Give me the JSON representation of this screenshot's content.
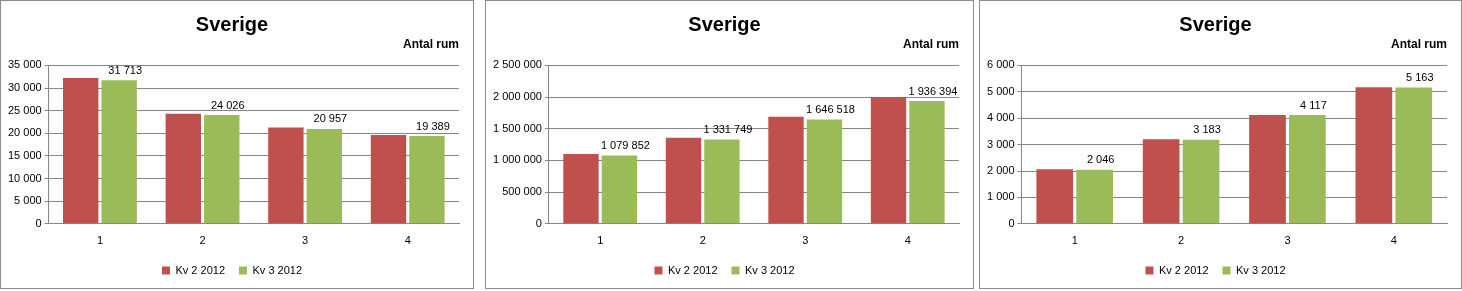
{
  "chart_data": [
    {
      "type": "bar",
      "title": "Sverige",
      "annotations": [
        "Antal rum"
      ],
      "categories": [
        "1",
        "2",
        "3",
        "4"
      ],
      "series": [
        {
          "name": "Kv 2 2012",
          "color": "#C0504D",
          "values": [
            32200,
            24300,
            21300,
            19600
          ]
        },
        {
          "name": "Kv 3 2012",
          "color": "#9BBB59",
          "values": [
            31713,
            24026,
            20957,
            19389
          ],
          "data_labels": true,
          "value_labels": [
            "31 713",
            "24 026",
            "20 957",
            "19 389"
          ]
        }
      ],
      "ylim": [
        0,
        35000
      ],
      "yticks": [
        0,
        {
          "value": 5000,
          "label": "5 000"
        },
        {
          "value": 10000,
          "label": "10 000"
        },
        {
          "value": 15000,
          "label": "15 000"
        },
        {
          "value": 20000,
          "label": "20 000"
        },
        {
          "value": 25000,
          "label": "25 000"
        },
        {
          "value": 30000,
          "label": "30 000"
        },
        {
          "value": 35000,
          "label": "35 000"
        }
      ],
      "grid": true,
      "legend": "bottom"
    },
    {
      "type": "bar",
      "title": "Sverige",
      "annotations": [
        "Antal rum"
      ],
      "categories": [
        "1",
        "2",
        "3",
        "4"
      ],
      "series": [
        {
          "name": "Kv 2 2012",
          "color": "#C0504D",
          "values": [
            1100000,
            1360000,
            1690000,
            2000000
          ]
        },
        {
          "name": "Kv 3 2012",
          "color": "#9BBB59",
          "values": [
            1079852,
            1331749,
            1646518,
            1936394
          ],
          "data_labels": true,
          "value_labels": [
            "1 079 852",
            "1 331 749",
            "1 646 518",
            "1 936 394"
          ]
        }
      ],
      "ylim": [
        0,
        2500000
      ],
      "yticks": [
        0,
        {
          "value": 500000,
          "label": "500 000"
        },
        {
          "value": 1000000,
          "label": "1 000 000"
        },
        {
          "value": 1500000,
          "label": "1 500 000"
        },
        {
          "value": 2000000,
          "label": "2 000 000"
        },
        {
          "value": 2500000,
          "label": "2 500 000"
        }
      ],
      "grid": true,
      "legend": "bottom"
    },
    {
      "type": "bar",
      "title": "Sverige",
      "annotations": [
        "Antal rum"
      ],
      "categories": [
        "1",
        "2",
        "3",
        "4"
      ],
      "series": [
        {
          "name": "Kv 2 2012",
          "color": "#C0504D",
          "values": [
            2070,
            3200,
            4120,
            5170
          ]
        },
        {
          "name": "Kv 3 2012",
          "color": "#9BBB59",
          "values": [
            2046,
            3183,
            4117,
            5163
          ],
          "data_labels": true,
          "value_labels": [
            "2 046",
            "3 183",
            "4 117",
            "5 163"
          ]
        }
      ],
      "ylim": [
        0,
        6000
      ],
      "yticks": [
        0,
        {
          "value": 1000,
          "label": "1 000"
        },
        {
          "value": 2000,
          "label": "2 000"
        },
        {
          "value": 3000,
          "label": "3 000"
        },
        {
          "value": 4000,
          "label": "4 000"
        },
        {
          "value": 5000,
          "label": "5 000"
        },
        {
          "value": 6000,
          "label": "6 000"
        }
      ],
      "grid": true,
      "legend": "bottom"
    }
  ]
}
